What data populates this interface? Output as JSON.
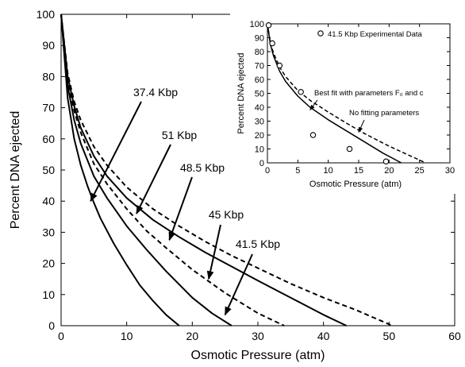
{
  "chart_data": [
    {
      "type": "line",
      "title": "",
      "xlabel": "Osmotic Pressure (atm)",
      "ylabel": "Percent DNA ejected",
      "xlim": [
        0,
        60
      ],
      "ylim": [
        0,
        100
      ],
      "xticks": [
        "0",
        "10",
        "20",
        "30",
        "40",
        "50",
        "60"
      ],
      "yticks": [
        "0",
        "10",
        "20",
        "30",
        "40",
        "50",
        "60",
        "70",
        "80",
        "90",
        "100"
      ],
      "grid": false,
      "colors": {
        "lines": "#000000",
        "frame": "#000000",
        "background": "#ffffff"
      },
      "series": [
        {
          "style": "solid",
          "x": [
            0,
            1,
            2,
            3,
            4,
            5,
            6,
            8,
            10,
            12,
            14,
            16,
            18
          ],
          "y": [
            100,
            73,
            60,
            51.5,
            45,
            39.5,
            34.5,
            26.5,
            19.5,
            13,
            8,
            3.5,
            0
          ]
        },
        {
          "style": "solid",
          "x": [
            0,
            1,
            2,
            3,
            5,
            7,
            10,
            13,
            16,
            20,
            23,
            26
          ],
          "y": [
            100,
            77,
            66,
            58.5,
            48,
            41,
            32,
            24.5,
            17.5,
            9,
            4,
            0
          ]
        },
        {
          "style": "dashed",
          "x": [
            0,
            1,
            2,
            3,
            5,
            7,
            10,
            13,
            16,
            20,
            25,
            30,
            34
          ],
          "y": [
            100,
            79,
            69,
            62,
            52,
            45.5,
            37.5,
            30.5,
            25,
            18,
            10.5,
            4,
            0
          ]
        },
        {
          "style": "solid",
          "x": [
            0,
            1,
            2,
            3,
            5,
            7,
            10,
            14,
            18,
            22,
            26,
            30,
            35,
            40,
            43.5
          ],
          "y": [
            100,
            80,
            70.5,
            63.5,
            54.5,
            48,
            41,
            34,
            28.5,
            23.5,
            19,
            14.5,
            9,
            3.5,
            0
          ]
        },
        {
          "style": "dashed",
          "x": [
            0,
            1,
            2,
            3,
            5,
            7,
            10,
            14,
            18,
            22,
            26,
            30,
            35,
            40,
            45,
            50.5
          ],
          "y": [
            100,
            81,
            72,
            66,
            57.5,
            51.5,
            44.5,
            37.5,
            32,
            27,
            22.5,
            18.5,
            13.5,
            9,
            5,
            0
          ]
        }
      ],
      "annotations": [
        {
          "label": "37.4 Kbp",
          "arrow_to": [
            4.5,
            40
          ]
        },
        {
          "label": "51 Kbp",
          "arrow_to": [
            11.5,
            36
          ]
        },
        {
          "label": "48.5 Kbp",
          "arrow_to": [
            16.5,
            27.5
          ]
        },
        {
          "label": "45 Kbp",
          "arrow_to": [
            22.5,
            15
          ]
        },
        {
          "label": "41.5 Kbp",
          "arrow_to": [
            25,
            3.5
          ]
        }
      ]
    },
    {
      "type": "scatter",
      "title": "",
      "xlabel": "Osmotic Pressure (atm)",
      "ylabel": "Percent DNA ejected",
      "xlim": [
        0,
        30
      ],
      "ylim": [
        0,
        100
      ],
      "xticks": [
        "0",
        "5",
        "10",
        "15",
        "20",
        "25",
        "30"
      ],
      "yticks": [
        "0",
        "10",
        "20",
        "30",
        "40",
        "50",
        "60",
        "70",
        "80",
        "90",
        "100"
      ],
      "legend": {
        "placement": "top",
        "label": "41.5 Kbp Experimental Data"
      },
      "points": {
        "x": [
          0.2,
          0.8,
          2,
          5.5,
          7.5,
          13.5,
          19.5
        ],
        "y": [
          99,
          86,
          70,
          51,
          20,
          10,
          1
        ]
      },
      "series": [
        {
          "style": "solid",
          "x": [
            0,
            0.5,
            1,
            2,
            3,
            5,
            7,
            10,
            13,
            16,
            19,
            22
          ],
          "y": [
            100,
            85,
            77,
            66,
            58.5,
            48,
            40,
            31,
            23,
            15,
            7,
            0
          ]
        },
        {
          "style": "dashed",
          "x": [
            0,
            0.5,
            1,
            2,
            3,
            5,
            7,
            10,
            13,
            16,
            20,
            24,
            26
          ],
          "y": [
            100,
            86,
            79,
            69,
            62,
            52,
            45,
            36.5,
            28.5,
            21,
            12,
            4,
            0
          ]
        }
      ],
      "annotations": [
        {
          "label": "Best fit with parameters F₀ and c",
          "arrow_to": [
            7,
            38
          ]
        },
        {
          "label": "No fitting parameters",
          "arrow_to": [
            15,
            22
          ]
        }
      ]
    }
  ]
}
